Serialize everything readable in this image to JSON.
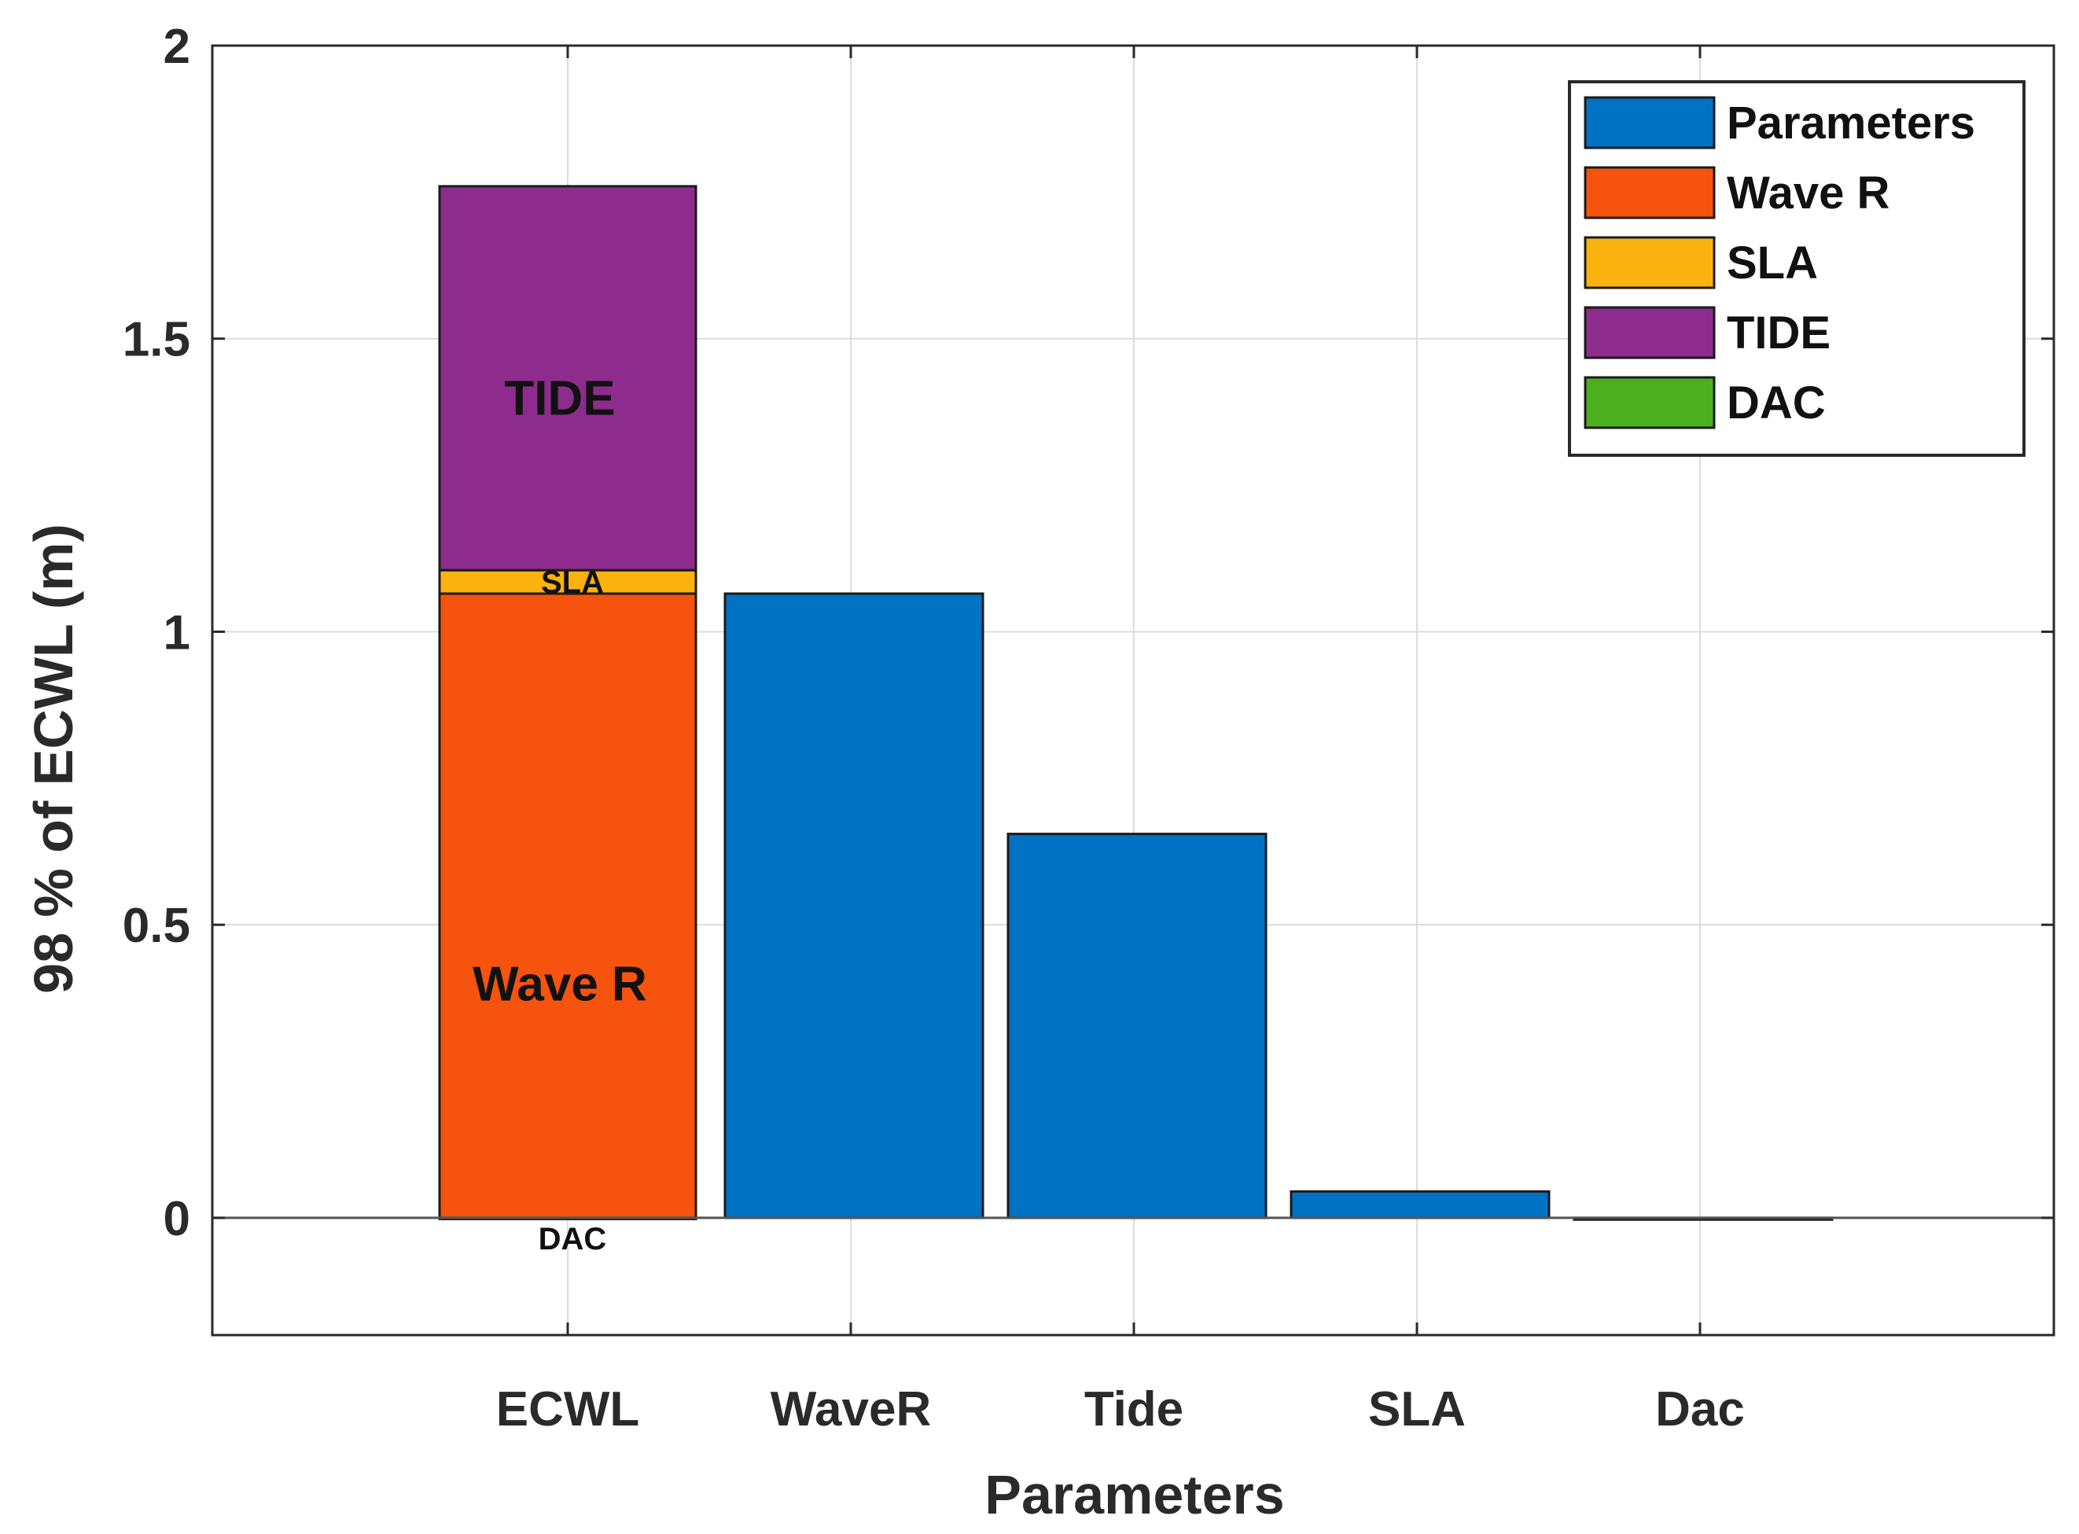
{
  "chart_data": {
    "type": "bar",
    "title": "",
    "xlabel": "Parameters",
    "ylabel": "98 % of ECWL (m)",
    "ylim": [
      -0.2,
      2
    ],
    "yticks": [
      0,
      0.5,
      1,
      1.5,
      2
    ],
    "ytick_labels": [
      "0",
      "0.5",
      "1",
      "1.5",
      "2"
    ],
    "grid": true,
    "legend_position": "top-right",
    "categories": [
      "ECWL",
      "WaveR",
      "Tide",
      "SLA",
      "Dac"
    ],
    "stacked_bar": {
      "category": "ECWL",
      "segments": [
        {
          "name": "DAC",
          "value": -0.002,
          "color": "#4DAF1E",
          "label": "DAC"
        },
        {
          "name": "Wave R",
          "value": 1.065,
          "color": "#F5530E",
          "label": "Wave R"
        },
        {
          "name": "SLA",
          "value": 0.04,
          "color": "#FBB20F",
          "label": "SLA"
        },
        {
          "name": "TIDE",
          "value": 0.655,
          "color": "#8E2C8E",
          "label": "TIDE"
        }
      ]
    },
    "series": [
      {
        "name": "Parameters",
        "color": "#0072C4",
        "values": [
          null,
          1.065,
          0.655,
          0.045,
          -0.003
        ]
      }
    ],
    "legend": [
      {
        "label": "Parameters",
        "color": "#0072C4"
      },
      {
        "label": "Wave R",
        "color": "#F5530E"
      },
      {
        "label": "SLA",
        "color": "#FBB20F"
      },
      {
        "label": "TIDE",
        "color": "#8E2C8E"
      },
      {
        "label": "DAC",
        "color": "#4DAF1E"
      }
    ]
  }
}
